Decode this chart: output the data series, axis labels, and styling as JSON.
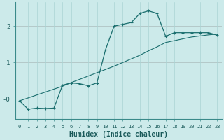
{
  "xlabel": "Humidex (Indice chaleur)",
  "bg_color": "#cceaea",
  "grid_color": "#aad4d4",
  "line_color": "#1a6e6e",
  "xlim": [
    -0.5,
    23.5
  ],
  "ylim": [
    -0.55,
    2.65
  ],
  "yticks": [
    0,
    1,
    2
  ],
  "ytick_labels": [
    "-0",
    "1",
    "2"
  ],
  "line1_x": [
    0,
    1,
    2,
    3,
    4,
    5,
    6,
    7,
    8,
    9,
    10,
    11,
    12,
    13,
    14,
    15,
    16,
    17,
    18,
    19,
    20,
    21,
    22,
    23
  ],
  "line1_y": [
    -0.05,
    -0.28,
    -0.25,
    -0.26,
    -0.25,
    0.38,
    0.44,
    0.42,
    0.36,
    0.44,
    1.35,
    2.0,
    2.05,
    2.1,
    2.35,
    2.42,
    2.35,
    1.72,
    1.82,
    1.82,
    1.82,
    1.82,
    1.82,
    1.75
  ],
  "line2_x": [
    0,
    1,
    2,
    3,
    4,
    5,
    6,
    7,
    8,
    9,
    10,
    11,
    12,
    13,
    14,
    15,
    16,
    17,
    18,
    19,
    20,
    21,
    22,
    23
  ],
  "line2_y": [
    -0.05,
    0.03,
    0.11,
    0.19,
    0.27,
    0.35,
    0.45,
    0.54,
    0.63,
    0.72,
    0.81,
    0.9,
    1.0,
    1.1,
    1.2,
    1.32,
    1.43,
    1.55,
    1.6,
    1.65,
    1.7,
    1.73,
    1.76,
    1.78
  ]
}
